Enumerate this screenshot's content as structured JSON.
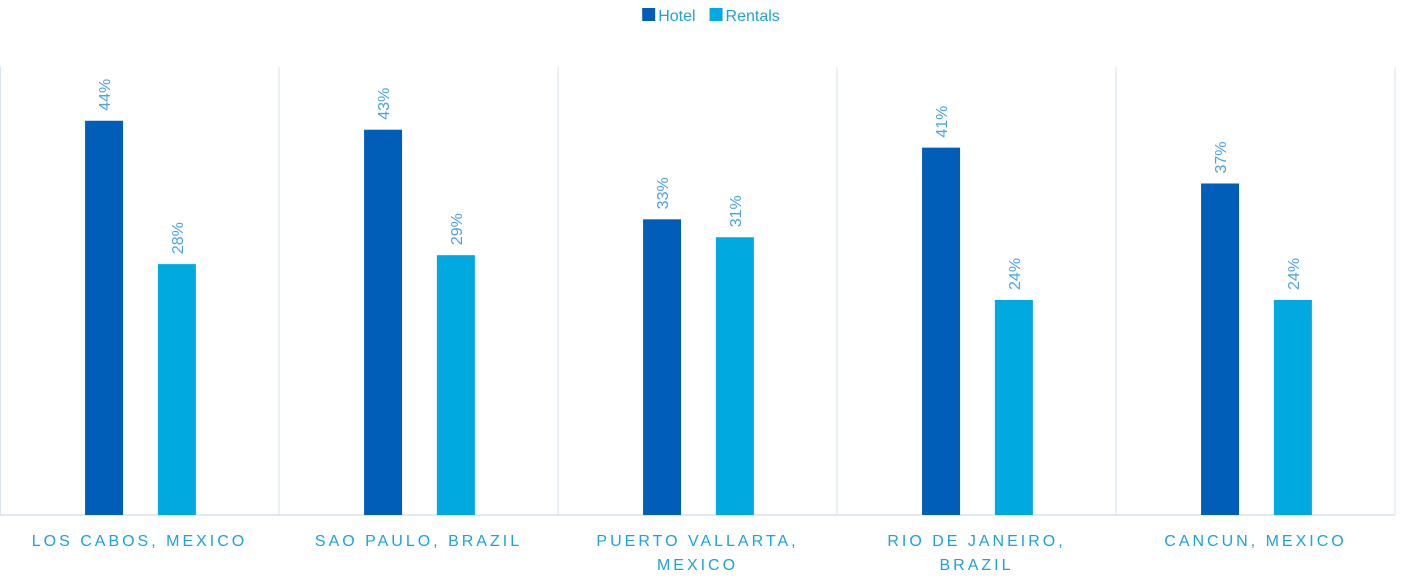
{
  "chart_data": {
    "type": "bar",
    "categories": [
      "LOS CABOS, MEXICO",
      "SAO PAULO, BRAZIL",
      "PUERTO VALLARTA, MEXICO",
      "RIO DE JANEIRO, BRAZIL",
      "CANCUN, MEXICO"
    ],
    "series": [
      {
        "name": "Hotel",
        "color": "#005eb8",
        "values": [
          44,
          43,
          33,
          41,
          37
        ],
        "value_labels": [
          "44%",
          "43%",
          "33%",
          "41%",
          "37%"
        ]
      },
      {
        "name": "Rentals",
        "color": "#00a9e0",
        "values": [
          28,
          29,
          31,
          24,
          24
        ],
        "value_labels": [
          "28%",
          "29%",
          "31%",
          "24%",
          "24%"
        ]
      }
    ],
    "ylim": [
      0,
      50
    ],
    "legend": "top"
  }
}
